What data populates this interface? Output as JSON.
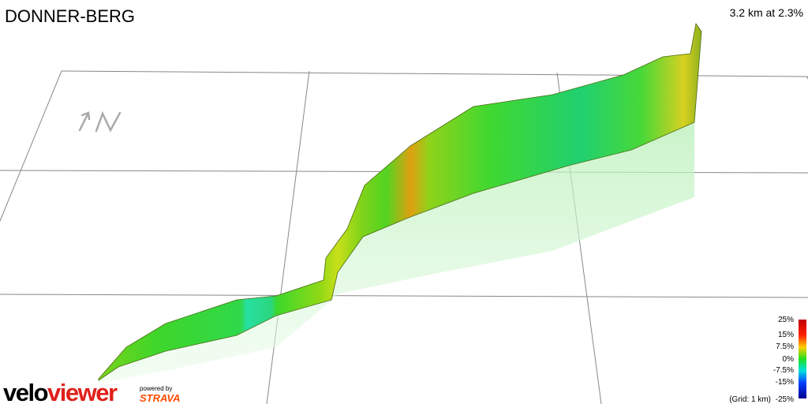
{
  "header": {
    "title": "DONNER-BERG",
    "summary": "3.2 km at 2.3%"
  },
  "legend": {
    "labels": [
      "25%",
      "15%",
      "7.5%",
      "0%",
      "-7.5%",
      "-15%",
      "-25%"
    ],
    "grid_note": "(Grid: 1 km)"
  },
  "branding": {
    "logo_part1": "velo",
    "logo_part2": "viewer",
    "powered_by": "powered by",
    "partner": "STRAVA"
  }
}
